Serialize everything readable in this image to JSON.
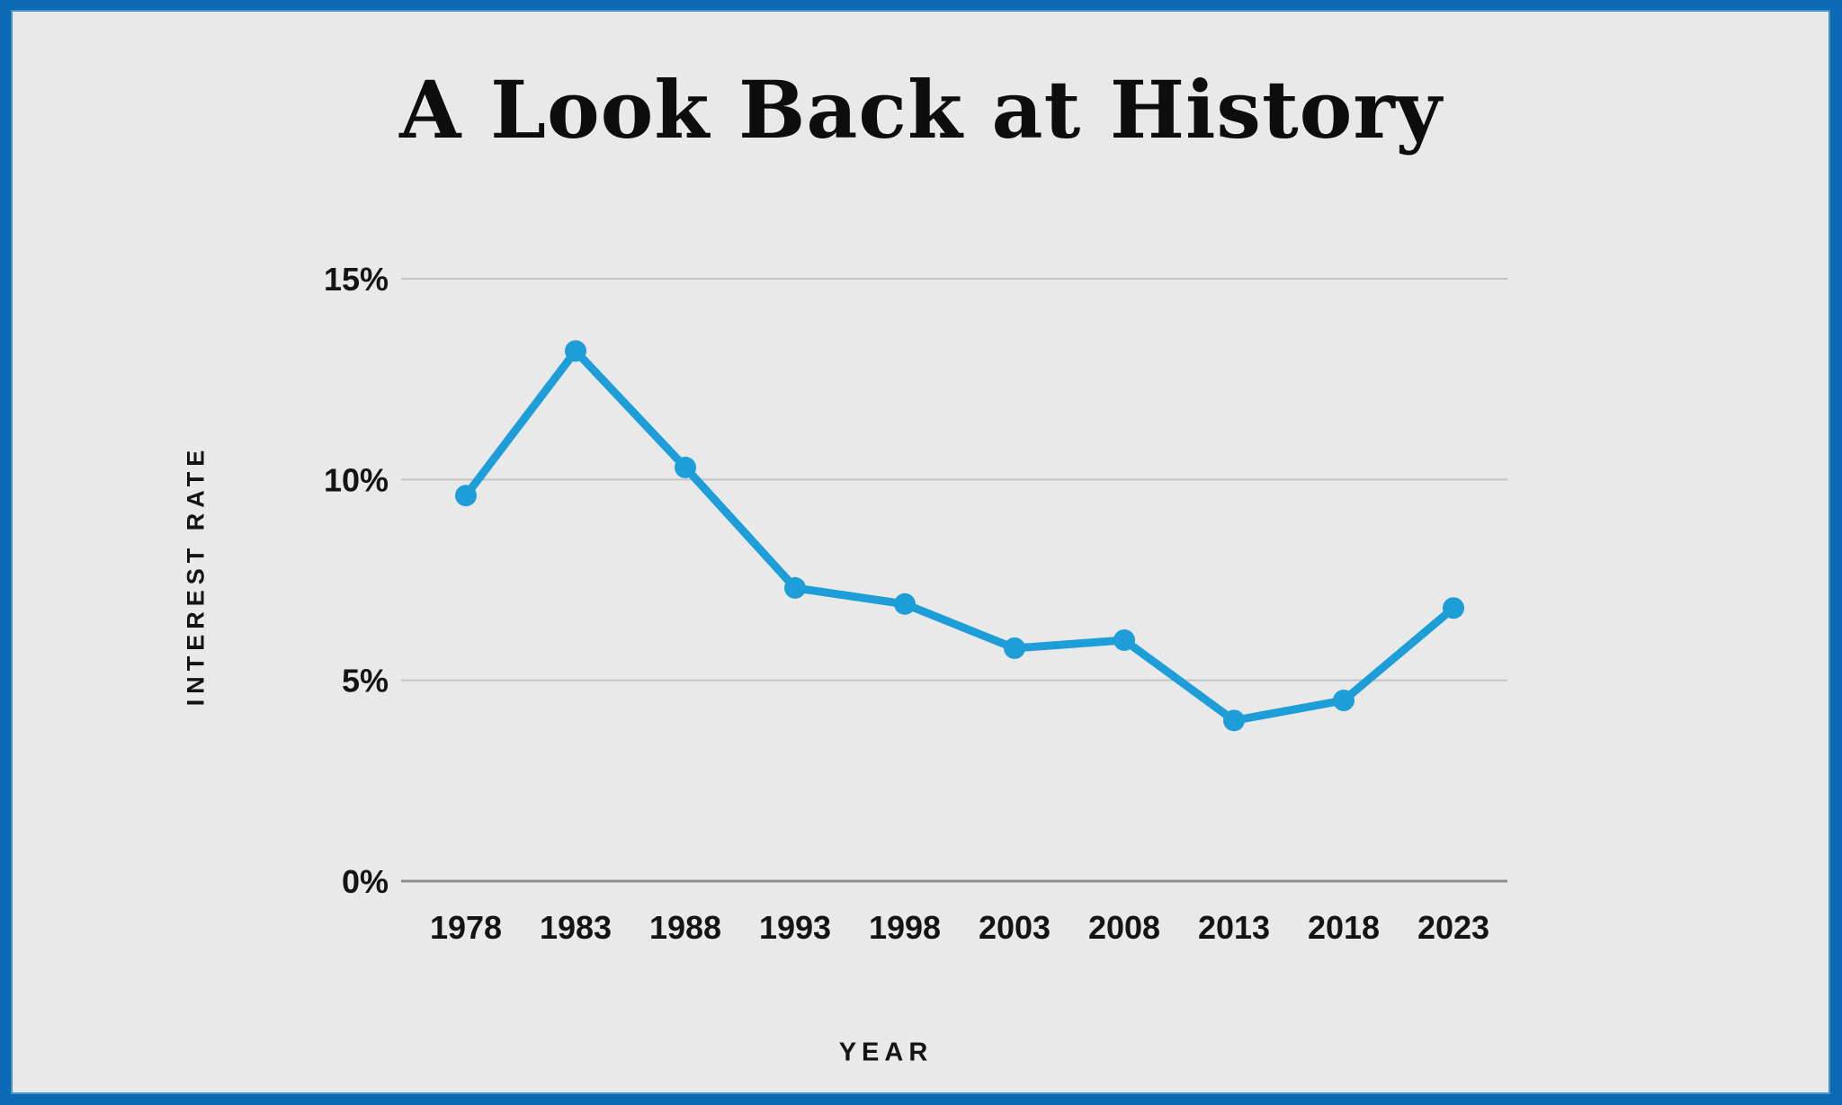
{
  "page": {
    "border_color": "#0b6ab3",
    "background_color": "#e9e9e9"
  },
  "chart_data": {
    "type": "line",
    "title": "A Look Back at History",
    "xlabel": "YEAR",
    "ylabel": "INTEREST RATE",
    "categories": [
      "1978",
      "1983",
      "1988",
      "1993",
      "1998",
      "2003",
      "2008",
      "2013",
      "2018",
      "2023"
    ],
    "series": [
      {
        "name": "Interest Rate",
        "values": [
          9.6,
          13.2,
          10.3,
          7.3,
          6.9,
          5.8,
          6.0,
          4.0,
          4.5,
          6.8
        ]
      }
    ],
    "ylim": [
      0,
      15
    ],
    "yticks": [
      {
        "value": 15,
        "label": "15%"
      },
      {
        "value": 10,
        "label": "10%"
      },
      {
        "value": 5,
        "label": "5%"
      },
      {
        "value": 0,
        "label": "0%"
      }
    ],
    "grid": true,
    "legend": "none",
    "line_color": "#1d9ed8"
  }
}
